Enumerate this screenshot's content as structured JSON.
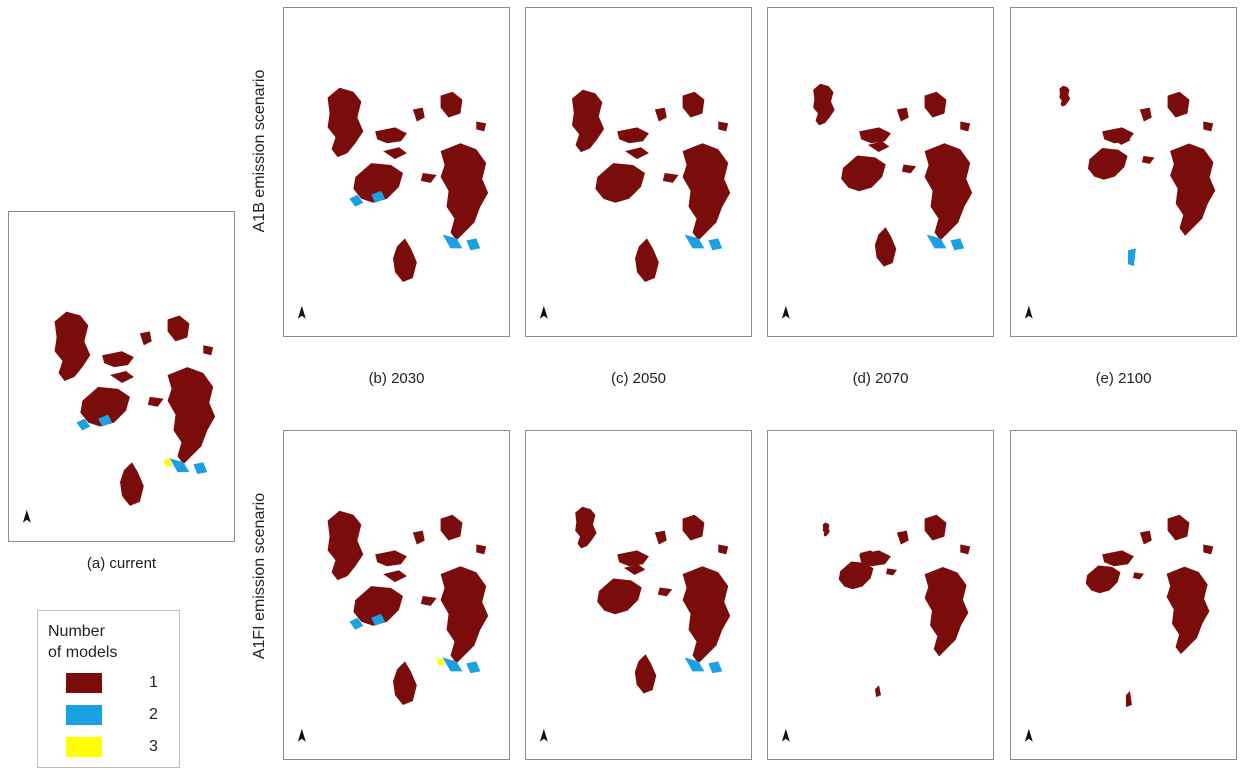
{
  "rows": {
    "a1b": {
      "label": "A1B emission scenario"
    },
    "a1fi": {
      "label": "A1FI emission scenario"
    }
  },
  "captions": {
    "current": "(a) current",
    "y2030": "(b) 2030",
    "y2050": "(c) 2050",
    "y2070": "(d) 2070",
    "y2100": "(e) 2100"
  },
  "legend": {
    "title_line1": "Number",
    "title_line2": "of models",
    "items": [
      {
        "label": "1",
        "color": "#7b0c0c"
      },
      {
        "label": "2",
        "color": "#1ba1e2"
      },
      {
        "label": "3",
        "color": "#ffff00"
      }
    ]
  },
  "colors": {
    "one_model": "#7b0c0c",
    "two_models": "#1ba1e2",
    "three_models": "#ffff00",
    "panel_border": "#8c8c8c"
  },
  "north_arrow_icon": "north-arrow-icon"
}
